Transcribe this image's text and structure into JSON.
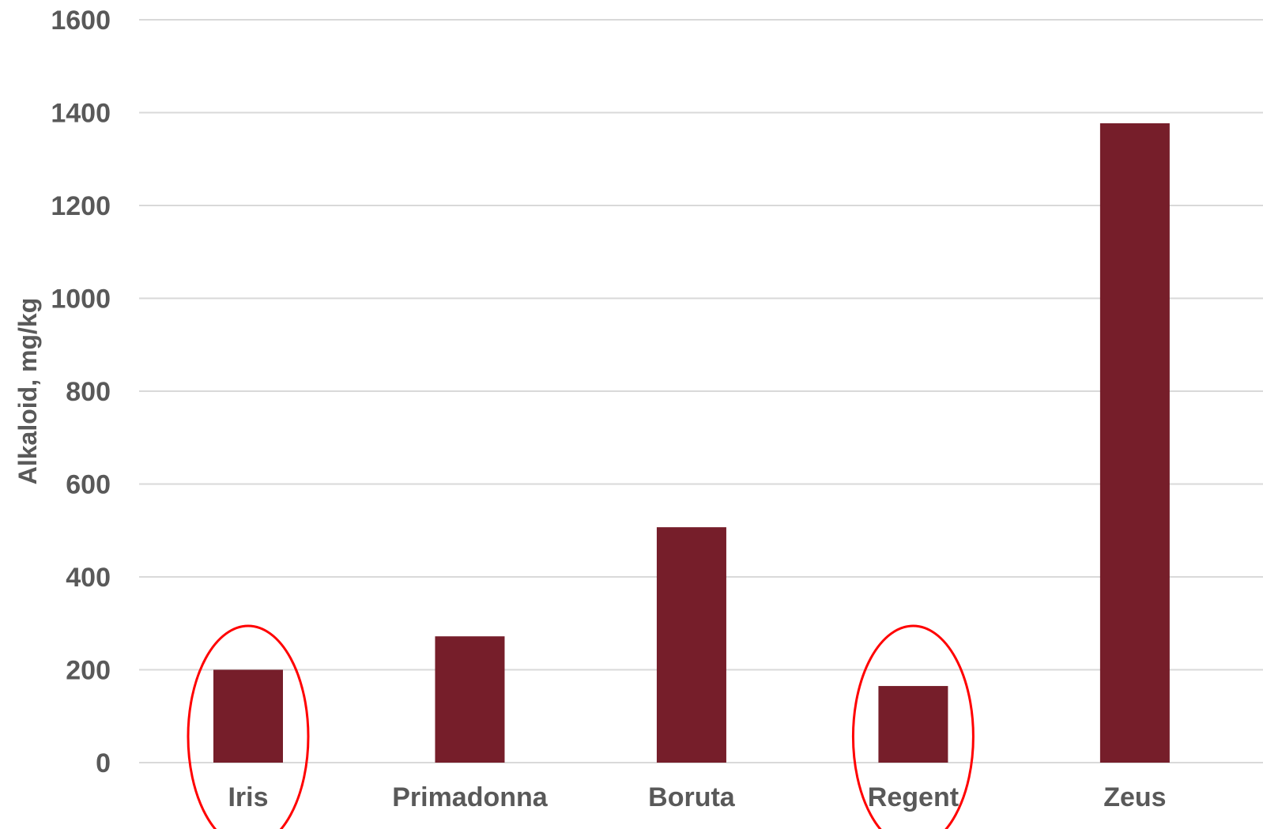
{
  "chart_data": {
    "type": "bar",
    "title": "",
    "xlabel": "",
    "ylabel": "Alkaloid, mg/kg",
    "categories": [
      "Iris",
      "Primadonna",
      "Boruta",
      "Regent",
      "Zeus"
    ],
    "values": [
      200,
      272,
      507,
      165,
      1377
    ],
    "ylim": [
      0,
      1600
    ],
    "yticks": [
      "0",
      "200",
      "400",
      "600",
      "800",
      "1000",
      "1200",
      "1400",
      "1600"
    ],
    "grid": true,
    "legend": "none",
    "highlighted_categories": [
      "Iris",
      "Regent"
    ],
    "colors": {
      "bar": "#761e2a",
      "highlight": "#ff0000",
      "grid": "#d9d9d9",
      "text": "#595959"
    }
  }
}
